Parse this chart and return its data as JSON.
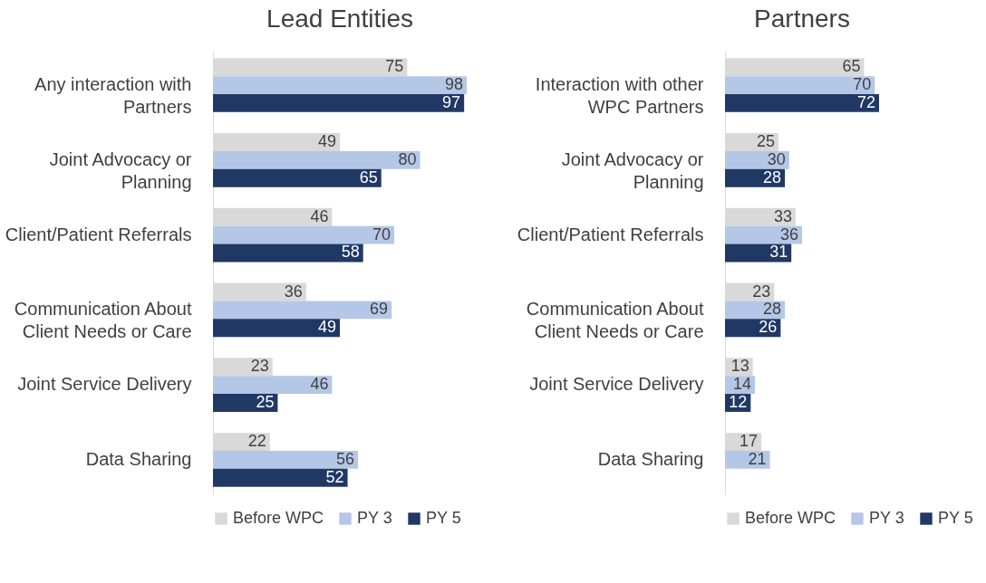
{
  "chart_data": [
    {
      "type": "bar",
      "orientation": "horizontal",
      "title": "Lead Entities",
      "data_labels": true,
      "legend": "bottom",
      "categories": [
        "Any interaction with Partners",
        "Joint Advocacy or Planning",
        "Client/Patient Referrals",
        "Communication About Client Needs or Care",
        "Joint Service Delivery",
        "Data Sharing"
      ],
      "series": [
        {
          "name": "Before WPC",
          "color": "#d9d9d9",
          "values": [
            75,
            49,
            46,
            36,
            23,
            22
          ]
        },
        {
          "name": "PY 3",
          "color": "#b4c7e7",
          "values": [
            98,
            80,
            70,
            69,
            46,
            56
          ]
        },
        {
          "name": "PY 5",
          "color": "#203864",
          "values": [
            97,
            65,
            58,
            49,
            25,
            52
          ]
        }
      ]
    },
    {
      "type": "bar",
      "orientation": "horizontal",
      "title": "Partners",
      "data_labels": true,
      "legend": "bottom",
      "categories": [
        "Interaction with other WPC Partners",
        "Joint Advocacy or Planning",
        "Client/Patient Referrals",
        "Communication About Client Needs or Care",
        "Joint Service Delivery",
        "Data Sharing"
      ],
      "series": [
        {
          "name": "Before WPC",
          "color": "#d9d9d9",
          "values": [
            65,
            25,
            33,
            23,
            13,
            17
          ]
        },
        {
          "name": "PY 3",
          "color": "#b4c7e7",
          "values": [
            70,
            30,
            36,
            28,
            14,
            21
          ]
        },
        {
          "name": "PY 5",
          "color": "#203864",
          "values": [
            72,
            28,
            31,
            26,
            12,
            null
          ]
        }
      ]
    }
  ]
}
